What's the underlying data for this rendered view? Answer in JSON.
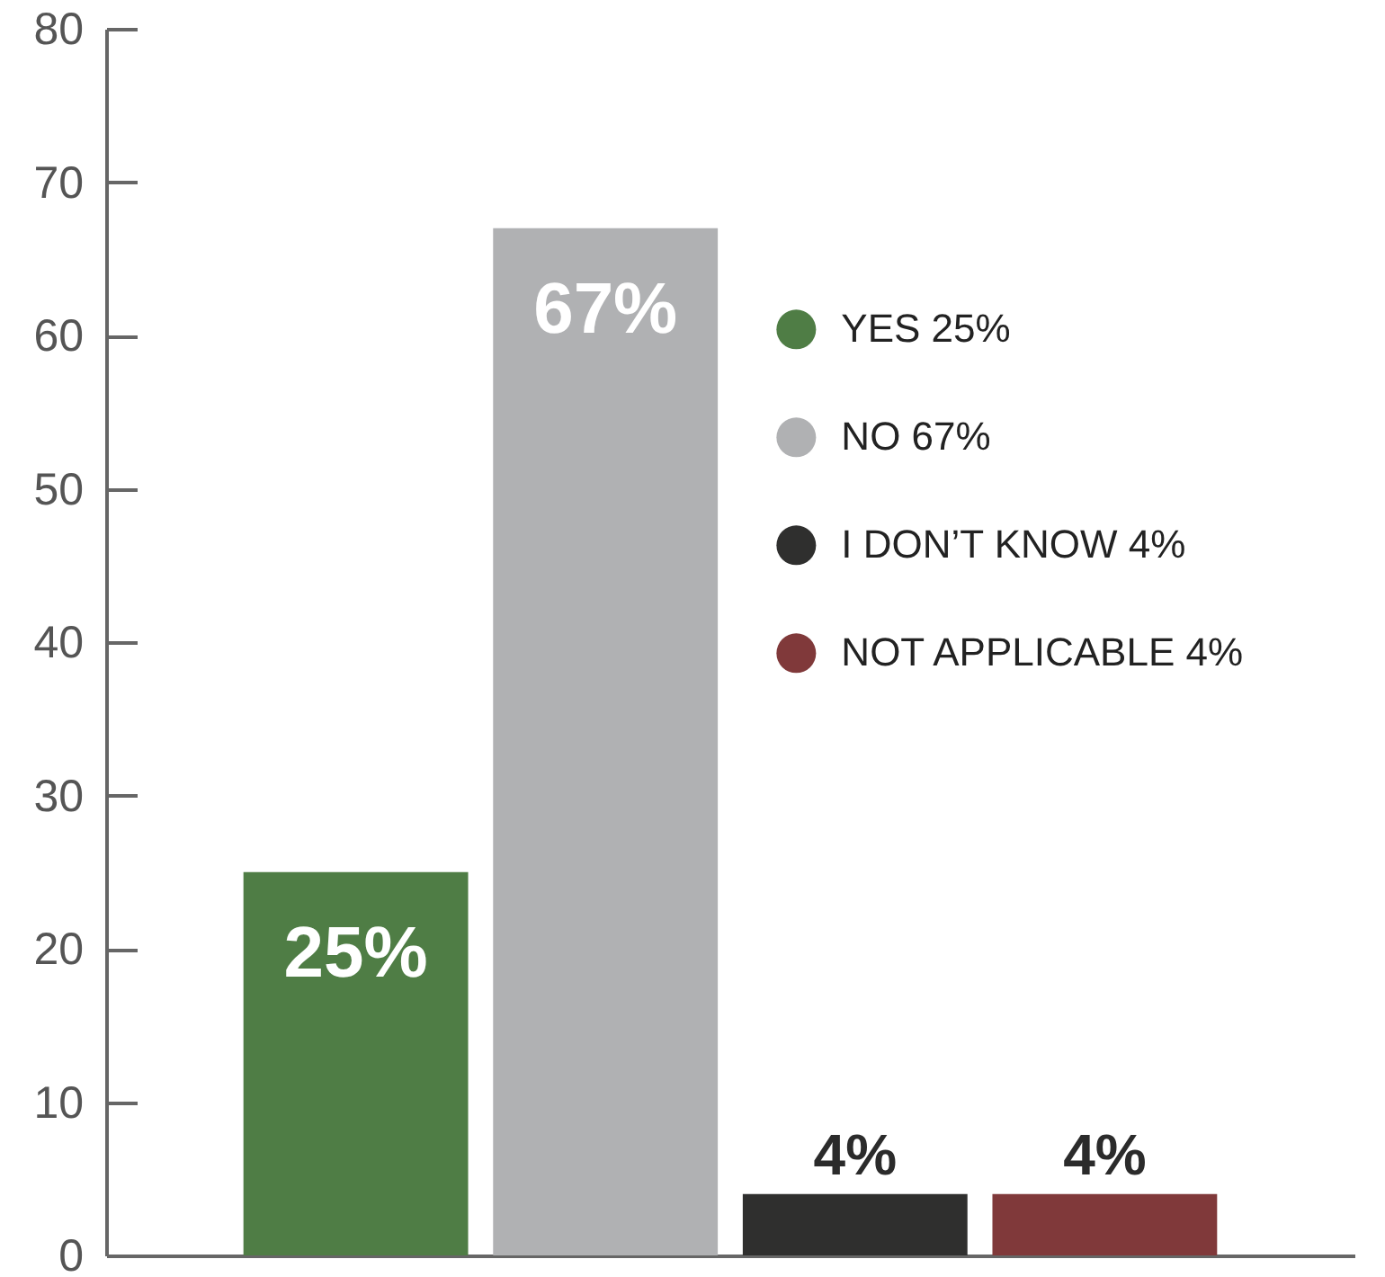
{
  "chart_data": {
    "type": "bar",
    "categories": [
      null,
      null,
      null,
      null
    ],
    "series": [
      {
        "name": "YES 25%",
        "color": "#4f7d45",
        "values": [
          25,
          null,
          null,
          null
        ],
        "value_labels": [
          "25%",
          null,
          null,
          null
        ]
      },
      {
        "name": "NO 67%",
        "color": "#b0b1b3",
        "values": [
          null,
          67,
          null,
          null
        ],
        "value_labels": [
          null,
          "67%",
          null,
          null
        ]
      },
      {
        "name": "I DON’T KNOW 4%",
        "color": "#2f2f2e",
        "values": [
          null,
          null,
          4,
          null
        ],
        "value_labels": [
          null,
          null,
          "4%",
          null
        ]
      },
      {
        "name": "NOT APPLICABLE 4%",
        "color": "#80393a",
        "values": [
          null,
          null,
          null,
          4
        ],
        "value_labels": [
          null,
          null,
          null,
          "4%"
        ]
      }
    ],
    "ylim": [
      0,
      80
    ],
    "yticks": [
      0,
      10,
      20,
      30,
      40,
      50,
      60,
      70,
      80
    ],
    "legend": "top right",
    "tick_labels": "y"
  }
}
